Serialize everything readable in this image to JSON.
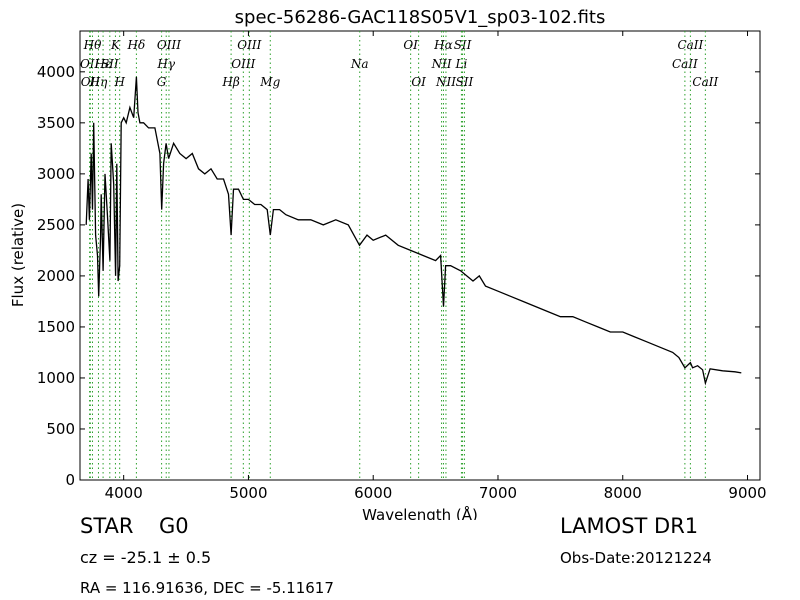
{
  "chart_data": {
    "type": "line",
    "title": "spec-56286-GAC118S05V1_sp03-102.fits",
    "xlabel": "Wavelength (Å)",
    "ylabel": "Flux (relative)",
    "xlim": [
      3650,
      9100
    ],
    "ylim": [
      0,
      4400
    ],
    "xticks": [
      4000,
      5000,
      6000,
      7000,
      8000,
      9000
    ],
    "yticks": [
      0,
      500,
      1000,
      1500,
      2000,
      2500,
      3000,
      3500,
      4000
    ],
    "line_color": "#000000",
    "marker_color": "#2ca02c",
    "grid": false,
    "series": [
      {
        "x": [
          3700,
          3715,
          3725,
          3740,
          3750,
          3760,
          3775,
          3790,
          3800,
          3815,
          3820,
          3835,
          3850,
          3870,
          3890,
          3900,
          3920,
          3935,
          3945,
          3955,
          3968,
          3980,
          4000,
          4020,
          4050,
          4080,
          4102,
          4115,
          4130,
          4160,
          4200,
          4250,
          4290,
          4305,
          4320,
          4340,
          4360,
          4400,
          4450,
          4500,
          4550,
          4600,
          4650,
          4700,
          4750,
          4800,
          4840,
          4861,
          4880,
          4920,
          4960,
          5000,
          5050,
          5100,
          5150,
          5175,
          5200,
          5250,
          5300,
          5400,
          5500,
          5600,
          5700,
          5800,
          5890,
          5950,
          6000,
          6100,
          6200,
          6300,
          6400,
          6500,
          6540,
          6563,
          6580,
          6620,
          6700,
          6800,
          6850,
          6900,
          7000,
          7100,
          7200,
          7300,
          7400,
          7500,
          7600,
          7700,
          7800,
          7900,
          8000,
          8100,
          8200,
          8300,
          8400,
          8450,
          8498,
          8542,
          8560,
          8600,
          8640,
          8662,
          8700,
          8800,
          8900,
          8950
        ],
        "values": [
          2500,
          2950,
          2550,
          3200,
          2650,
          3500,
          2400,
          2200,
          1800,
          2400,
          2800,
          2050,
          3000,
          2600,
          2150,
          3300,
          2900,
          2000,
          3100,
          1950,
          2100,
          3500,
          3550,
          3500,
          3650,
          3550,
          3950,
          3600,
          3500,
          3500,
          3450,
          3450,
          3200,
          2650,
          3100,
          3300,
          3150,
          3300,
          3200,
          3150,
          3200,
          3050,
          3000,
          3050,
          2950,
          2950,
          2800,
          2400,
          2850,
          2850,
          2750,
          2750,
          2700,
          2700,
          2650,
          2400,
          2650,
          2650,
          2600,
          2550,
          2550,
          2500,
          2550,
          2500,
          2300,
          2400,
          2350,
          2400,
          2300,
          2250,
          2200,
          2150,
          2200,
          1700,
          2100,
          2100,
          2050,
          1950,
          2000,
          1900,
          1850,
          1800,
          1750,
          1700,
          1650,
          1600,
          1600,
          1550,
          1500,
          1450,
          1450,
          1400,
          1350,
          1300,
          1250,
          1200,
          1100,
          1150,
          1100,
          1120,
          1080,
          950,
          1090,
          1070,
          1060,
          1050
        ]
      }
    ],
    "line_markers": [
      {
        "wavelength": 3727,
        "label": "OII",
        "row": 1
      },
      {
        "wavelength": 3733,
        "label": "OII",
        "row": 2
      },
      {
        "wavelength": 3750,
        "label": "Hθ",
        "row": 0
      },
      {
        "wavelength": 3798,
        "label": "Hη",
        "row": 2
      },
      {
        "wavelength": 3835,
        "label": "Hε",
        "row": 1
      },
      {
        "wavelength": 3889,
        "label": "SII",
        "row": 1
      },
      {
        "wavelength": 3934,
        "label": "K",
        "row": 0
      },
      {
        "wavelength": 3968,
        "label": "H",
        "row": 2
      },
      {
        "wavelength": 4102,
        "label": "Hδ",
        "row": 0
      },
      {
        "wavelength": 4304,
        "label": "G",
        "row": 2
      },
      {
        "wavelength": 4341,
        "label": "Hγ",
        "row": 1
      },
      {
        "wavelength": 4363,
        "label": "OIII",
        "row": 0
      },
      {
        "wavelength": 4861,
        "label": "Hβ",
        "row": 2
      },
      {
        "wavelength": 4959,
        "label": "OIII",
        "row": 1
      },
      {
        "wavelength": 5007,
        "label": "OIII",
        "row": 0
      },
      {
        "wavelength": 5175,
        "label": "Mg",
        "row": 2
      },
      {
        "wavelength": 5892,
        "label": "Na",
        "row": 1
      },
      {
        "wavelength": 6300,
        "label": "OI",
        "row": 0
      },
      {
        "wavelength": 6364,
        "label": "OI",
        "row": 2
      },
      {
        "wavelength": 6548,
        "label": "NII",
        "row": 1
      },
      {
        "wavelength": 6563,
        "label": "Hα",
        "row": 0
      },
      {
        "wavelength": 6583,
        "label": "NII",
        "row": 2
      },
      {
        "wavelength": 6707,
        "label": "Li",
        "row": 1
      },
      {
        "wavelength": 6716,
        "label": "SII",
        "row": 0
      },
      {
        "wavelength": 6731,
        "label": "SII",
        "row": 2
      },
      {
        "wavelength": 8498,
        "label": "CaII",
        "row": 1
      },
      {
        "wavelength": 8542,
        "label": "CaII",
        "row": 0
      },
      {
        "wavelength": 8662,
        "label": "CaII",
        "row": 2
      }
    ]
  },
  "info": {
    "class_label": "STAR",
    "subclass_label": "G0",
    "survey": "LAMOST DR1",
    "cz": "cz = -25.1 ± 0.5",
    "obs_date": "Obs-Date:20121224",
    "coords": "RA = 116.91636, DEC = -5.11617"
  }
}
